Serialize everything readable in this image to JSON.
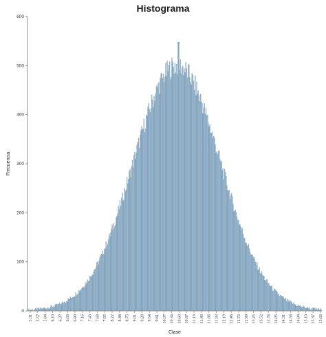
{
  "chart_data": {
    "type": "bar",
    "title": "Histograma",
    "xlabel": "Clase",
    "ylabel": "Frecuencia",
    "ylim": [
      0,
      600
    ],
    "y_ticks": [
      0,
      100,
      200,
      300,
      400,
      500,
      600
    ],
    "x_tick_labels": [
      "5.31",
      "5.57",
      "5.84",
      "6.10",
      "6.37",
      "6.63",
      "6.90",
      "7.16",
      "7.43",
      "7.69",
      "7.95",
      "8.22",
      "8.48",
      "8.75",
      "9.01",
      "9.28",
      "9.54",
      "9.81",
      "10.07",
      "10.34",
      "10.60",
      "10.87",
      "11.13",
      "11.40",
      "11.66",
      "11.93",
      "12.19",
      "12.46",
      "12.72",
      "12.99",
      "13.25",
      "13.52",
      "13.78",
      "14.05",
      "14.31",
      "14.58",
      "14.84",
      "15.10",
      "15.37",
      "15.63"
    ],
    "grid": false,
    "bar_color": "#bcd0dc",
    "bar_edge_color": "#5b86ab",
    "distribution": {
      "shape": "approximately normal (bell-shaped)",
      "x_min": 5.31,
      "x_max": 15.63,
      "mode_class": "10.60",
      "peak_frequency": 548
    }
  }
}
